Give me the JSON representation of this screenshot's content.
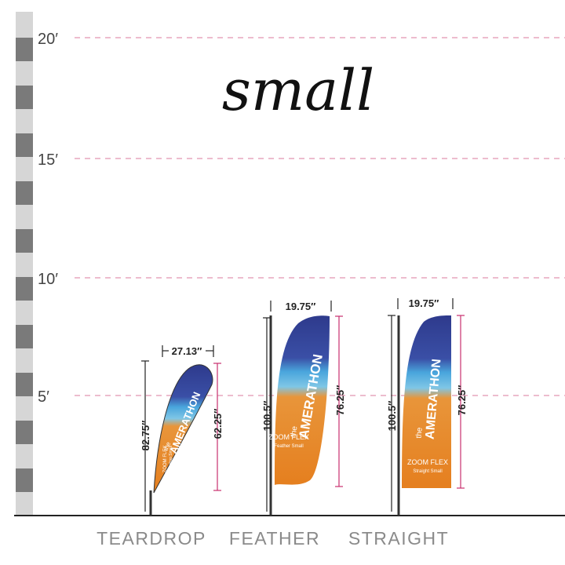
{
  "title": "small",
  "scale": {
    "marks": [
      "20′",
      "15′",
      "10′",
      "5′"
    ]
  },
  "flags": [
    {
      "name": "TEARDROP",
      "width": "27.13″",
      "pole_height": "82.75″",
      "flag_height": "62.25″",
      "brand_small": "the",
      "brand": "AMERATHON",
      "product": "ZOOM FLEX",
      "model": "Teardrop Small"
    },
    {
      "name": "FEATHER",
      "width": "19.75″",
      "pole_height": "100.5″",
      "flag_height": "76.25″",
      "brand_small": "the",
      "brand": "AMERATHON",
      "product": "ZOOM FLEX",
      "model": "Feather Small"
    },
    {
      "name": "STRAIGHT",
      "width": "19.75″",
      "pole_height": "100.5″",
      "flag_height": "76.25″",
      "brand_small": "the",
      "brand": "AMERATHON",
      "product": "ZOOM FLEX",
      "model": "Straight Small"
    }
  ]
}
